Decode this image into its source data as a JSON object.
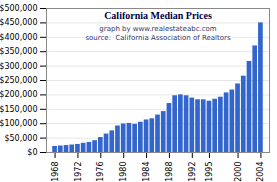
{
  "chart_data": {
    "type": "bar",
    "title": "California Median Prices",
    "subtitle": [
      "graph by www.realestateabc.com",
      "source:  California Association of Realtors"
    ],
    "x": [
      1968,
      1969,
      1970,
      1971,
      1972,
      1973,
      1974,
      1975,
      1976,
      1977,
      1978,
      1979,
      1980,
      1981,
      1982,
      1983,
      1984,
      1985,
      1986,
      1987,
      1988,
      1989,
      1990,
      1991,
      1992,
      1993,
      1994,
      1995,
      1996,
      1997,
      1998,
      1999,
      2000,
      2001,
      2002,
      2003,
      2004
    ],
    "values": [
      21000,
      22500,
      24000,
      26000,
      28000,
      32000,
      35000,
      41000,
      52000,
      64000,
      75000,
      92000,
      99000,
      101000,
      98000,
      105000,
      113000,
      117000,
      130000,
      142000,
      170000,
      197000,
      200000,
      197000,
      189000,
      183000,
      183000,
      178000,
      185000,
      192000,
      207000,
      217000,
      238000,
      265000,
      316000,
      370000,
      450000
    ],
    "color": "#3366cc",
    "xlim": [
      1966.5,
      2005.5
    ],
    "xticks": [
      1968,
      1972,
      1976,
      1980,
      1984,
      1988,
      1992,
      1995,
      2000,
      2004
    ],
    "ylim": [
      0,
      500000
    ],
    "yticks": [
      {
        "value": 0,
        "label": "$0"
      },
      {
        "value": 50000,
        "label": "$50,000"
      },
      {
        "value": 100000,
        "label": "$100,000"
      },
      {
        "value": 150000,
        "label": "$150,000"
      },
      {
        "value": 200000,
        "label": "$200,000"
      },
      {
        "value": 250000,
        "label": "$250,000"
      },
      {
        "value": 300000,
        "label": "$300,000"
      },
      {
        "value": 350000,
        "label": "$350,000"
      },
      {
        "value": 400000,
        "label": "$400,000"
      },
      {
        "value": 450000,
        "label": "$450,000"
      },
      {
        "value": 500000,
        "label": "$500,000"
      }
    ],
    "grid": true
  }
}
